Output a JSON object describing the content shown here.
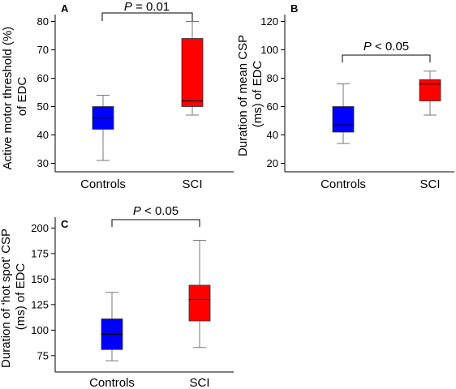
{
  "chart_data": [
    {
      "type": "box",
      "panel": "A",
      "ylabel_lines": [
        "Active motor threshold (%)",
        "of EDC"
      ],
      "categories": [
        "Controls",
        "SCI"
      ],
      "yticks": [
        30,
        40,
        50,
        60,
        70,
        80
      ],
      "ylim": [
        27,
        83
      ],
      "boxes": [
        {
          "category": "Controls",
          "color": "#0000ff",
          "min": 31,
          "q1": 42,
          "median": 46,
          "q3": 50,
          "max": 54
        },
        {
          "category": "SCI",
          "color": "#ff0000",
          "min": 47,
          "q1": 50,
          "median": 52,
          "q3": 74,
          "max": 80
        }
      ],
      "significance": {
        "italic": "P",
        "rest": " = 0.01"
      }
    },
    {
      "type": "box",
      "panel": "B",
      "ylabel_lines": [
        "Duration of mean CSP",
        "(ms) of EDC"
      ],
      "categories": [
        "Controls",
        "SCI"
      ],
      "yticks": [
        20,
        40,
        60,
        80,
        100,
        120
      ],
      "ylim": [
        14,
        126
      ],
      "boxes": [
        {
          "category": "Controls",
          "color": "#0000ff",
          "min": 34,
          "q1": 42,
          "median": 47,
          "q3": 60,
          "max": 76
        },
        {
          "category": "SCI",
          "color": "#ff0000",
          "min": 54,
          "q1": 64,
          "median": 76,
          "q3": 79,
          "max": 85
        }
      ],
      "significance": {
        "italic": "P",
        "rest": " < 0.05"
      }
    },
    {
      "type": "box",
      "panel": "C",
      "ylabel_lines": [
        "Duration of ‘hot spot’ CSP",
        "(ms) of EDC"
      ],
      "categories": [
        "Controls",
        "SCI"
      ],
      "yticks": [
        75,
        100,
        125,
        150,
        175,
        200
      ],
      "ylim": [
        59,
        213
      ],
      "boxes": [
        {
          "category": "Controls",
          "color": "#0000ff",
          "min": 70,
          "q1": 81,
          "median": 96,
          "q3": 111,
          "max": 137
        },
        {
          "category": "SCI",
          "color": "#ff0000",
          "min": 83,
          "q1": 109,
          "median": 130,
          "q3": 144,
          "max": 188
        }
      ],
      "significance": {
        "italic": "P",
        "rest": " < 0.05"
      }
    }
  ]
}
